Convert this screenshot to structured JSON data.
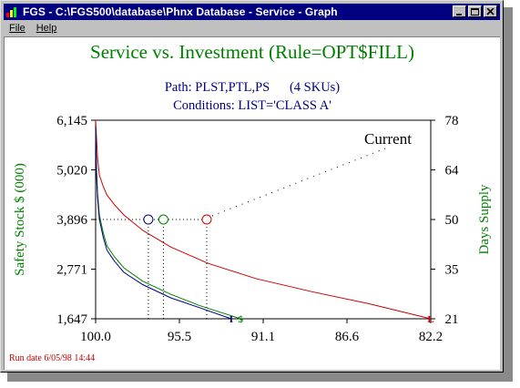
{
  "window": {
    "title": "FGS - C:\\FGS500\\database\\Phnx Database - Service - Graph",
    "menu": [
      "File",
      "Help"
    ]
  },
  "colors": {
    "title": "#008000",
    "subtitle": "#000080",
    "left_axis_label": "#008000",
    "right_axis_label": "#008000",
    "run_date": "#c00000"
  },
  "chart_data": {
    "type": "line",
    "title": "Service vs. Investment (Rule=OPT$FILL)",
    "subtitle_lines": [
      "Path: PLST,PTL,PS      (4 SKUs)",
      "Conditions: LIST='CLASS A'"
    ],
    "ylabel": "Safety Stock $ (000)",
    "y2label": "Days Supply",
    "xlim": [
      100.0,
      82.2
    ],
    "ylim": [
      1647,
      6145
    ],
    "y2lim": [
      21,
      78
    ],
    "x_ticks": [
      "100.0",
      "95.5",
      "91.1",
      "86.6",
      "82.2"
    ],
    "y_ticks": [
      "1,647",
      "2,771",
      "3,896",
      "5,020",
      "6,145"
    ],
    "y2_ticks": [
      "21",
      "35",
      "50",
      "64",
      "78"
    ],
    "current_label": "Current",
    "series": [
      {
        "color": "#cc0000",
        "end_marker": "L",
        "x": [
          100,
          99.9,
          99.8,
          99.6,
          99.4,
          99.0,
          98.5,
          97.5,
          96.0,
          94.0,
          91.5,
          88.5,
          85.5,
          82.2
        ],
        "y": [
          6145,
          5300,
          4900,
          4650,
          4450,
          4230,
          4000,
          3650,
          3270,
          2900,
          2560,
          2260,
          1990,
          1647
        ]
      },
      {
        "color": "#008000",
        "end_marker": "$",
        "x": [
          100,
          99.95,
          99.9,
          99.8,
          99.6,
          99.4,
          99.0,
          98.5,
          97.5,
          96.0,
          94.5,
          92.3
        ],
        "y": [
          6000,
          5000,
          4500,
          4000,
          3600,
          3300,
          3050,
          2800,
          2500,
          2200,
          1950,
          1647
        ]
      },
      {
        "color": "#000080",
        "end_marker": "I",
        "x": [
          100,
          99.95,
          99.9,
          99.8,
          99.6,
          99.4,
          99.0,
          98.5,
          97.5,
          96.0,
          94.5,
          92.8
        ],
        "y": [
          6000,
          4900,
          4400,
          3900,
          3500,
          3200,
          2950,
          2700,
          2420,
          2120,
          1900,
          1647
        ]
      }
    ],
    "current_points": [
      {
        "color": "#000080",
        "x": 97.2,
        "y": 3896
      },
      {
        "color": "#008000",
        "x": 96.4,
        "y": 3896
      },
      {
        "color": "#cc0000",
        "x": 94.1,
        "y": 3896
      }
    ],
    "footer": "Run date  6/05/98 14:44"
  }
}
